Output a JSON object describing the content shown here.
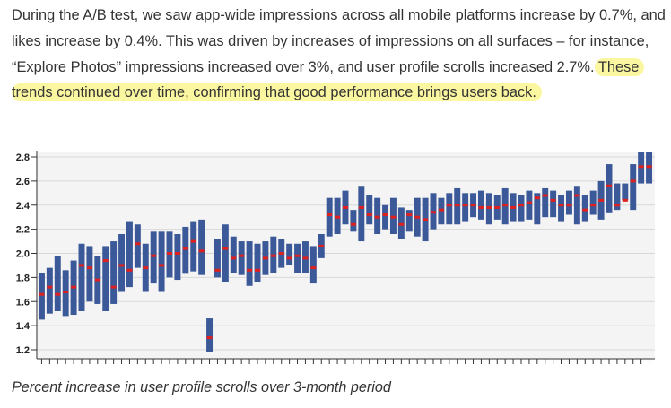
{
  "article": {
    "paragraph_plain": "During the A/B test, we saw app-wide impressions across all mobile platforms increase by 0.7%, and likes increase by 0.4%. This was driven by increases of impressions on all surfaces – for instance, “Explore Photos” impressions increased over 3%, and user profile scrolls increased 2.7%.",
    "paragraph_highlight": " These trends continued over time, confirming that good performance brings users back.",
    "highlight_color": "#fbf6a0"
  },
  "caption": "Percent increase in user profile scrolls over 3-month period",
  "chart_data": {
    "type": "bar",
    "subtype": "floating range bars with point estimates",
    "title": "",
    "xlabel": "",
    "ylabel": "",
    "ylim": [
      1.17,
      2.86
    ],
    "yticks": [
      "1.2",
      "1.4",
      "1.6",
      "1.8",
      "2.0",
      "2.2",
      "2.4",
      "2.6",
      "2.8"
    ],
    "grid": true,
    "x_tick_count": 77,
    "bar_color": "#3b5998",
    "point_color": "#e0201e",
    "series": [
      {
        "name": "",
        "x": [
          1,
          2,
          3,
          4,
          5,
          6,
          7,
          8,
          9,
          10,
          11,
          12,
          13,
          14,
          15,
          16,
          17,
          18,
          19,
          20,
          21,
          22,
          23,
          24,
          25,
          26,
          27,
          28,
          29,
          30,
          31,
          32,
          33,
          34,
          35,
          36,
          37,
          38,
          39,
          40,
          41,
          42,
          43,
          44,
          45,
          46,
          47,
          48,
          49,
          50,
          51,
          52,
          53,
          54,
          55,
          56,
          57,
          58,
          59,
          60,
          61,
          62,
          63,
          64,
          65,
          66,
          67,
          68,
          69,
          70,
          71,
          72,
          73,
          74,
          75,
          76,
          77
        ],
        "low": [
          1.45,
          1.5,
          1.52,
          1.48,
          1.49,
          1.52,
          1.6,
          1.58,
          1.52,
          1.58,
          1.68,
          1.72,
          1.88,
          1.68,
          1.75,
          1.68,
          1.8,
          1.78,
          1.83,
          1.85,
          1.82,
          1.18,
          1.8,
          1.76,
          1.84,
          1.82,
          1.73,
          1.76,
          1.82,
          1.84,
          1.88,
          1.9,
          1.84,
          1.84,
          1.75,
          1.96,
          2.14,
          2.16,
          2.24,
          2.18,
          2.1,
          2.24,
          2.16,
          2.2,
          2.16,
          2.12,
          2.18,
          2.14,
          2.1,
          2.2,
          2.24,
          2.24,
          2.24,
          2.26,
          2.3,
          2.28,
          2.24,
          2.28,
          2.24,
          2.26,
          2.26,
          2.28,
          2.24,
          2.3,
          2.3,
          2.26,
          2.32,
          2.24,
          2.26,
          2.32,
          2.28,
          2.34,
          2.36,
          2.44,
          2.36,
          2.58,
          2.58
        ],
        "high": [
          1.84,
          1.88,
          1.98,
          1.86,
          1.94,
          2.08,
          2.06,
          1.98,
          2.06,
          2.1,
          2.16,
          2.26,
          2.24,
          2.08,
          2.18,
          2.18,
          2.18,
          2.16,
          2.22,
          2.26,
          2.28,
          1.46,
          2.12,
          2.24,
          2.14,
          2.1,
          2.1,
          2.08,
          2.1,
          2.14,
          2.12,
          2.08,
          2.08,
          2.1,
          2.06,
          2.16,
          2.46,
          2.46,
          2.52,
          2.36,
          2.56,
          2.48,
          2.46,
          2.4,
          2.46,
          2.38,
          2.36,
          2.46,
          2.46,
          2.5,
          2.46,
          2.5,
          2.54,
          2.5,
          2.5,
          2.52,
          2.5,
          2.48,
          2.54,
          2.5,
          2.48,
          2.52,
          2.5,
          2.54,
          2.52,
          2.48,
          2.52,
          2.56,
          2.48,
          2.52,
          2.6,
          2.74,
          2.58,
          2.58,
          2.74,
          2.84,
          2.84
        ],
        "estimate": [
          1.66,
          1.72,
          1.66,
          1.68,
          1.72,
          1.9,
          1.88,
          1.78,
          1.94,
          1.72,
          1.9,
          1.86,
          2.08,
          1.88,
          1.98,
          1.9,
          2.0,
          2.0,
          2.04,
          2.1,
          2.02,
          1.3,
          1.86,
          2.04,
          1.96,
          1.98,
          1.86,
          1.86,
          1.96,
          1.98,
          2.0,
          1.96,
          1.98,
          1.96,
          1.88,
          2.06,
          2.32,
          2.3,
          2.38,
          2.24,
          2.38,
          2.32,
          2.3,
          2.32,
          2.3,
          2.24,
          2.32,
          2.3,
          2.28,
          2.34,
          2.36,
          2.4,
          2.4,
          2.4,
          2.4,
          2.38,
          2.38,
          2.38,
          2.4,
          2.38,
          2.4,
          2.42,
          2.46,
          2.48,
          2.44,
          2.4,
          2.4,
          2.48,
          2.36,
          2.4,
          2.44,
          2.56,
          2.4,
          2.44,
          2.6,
          2.72,
          2.72
        ]
      }
    ]
  }
}
